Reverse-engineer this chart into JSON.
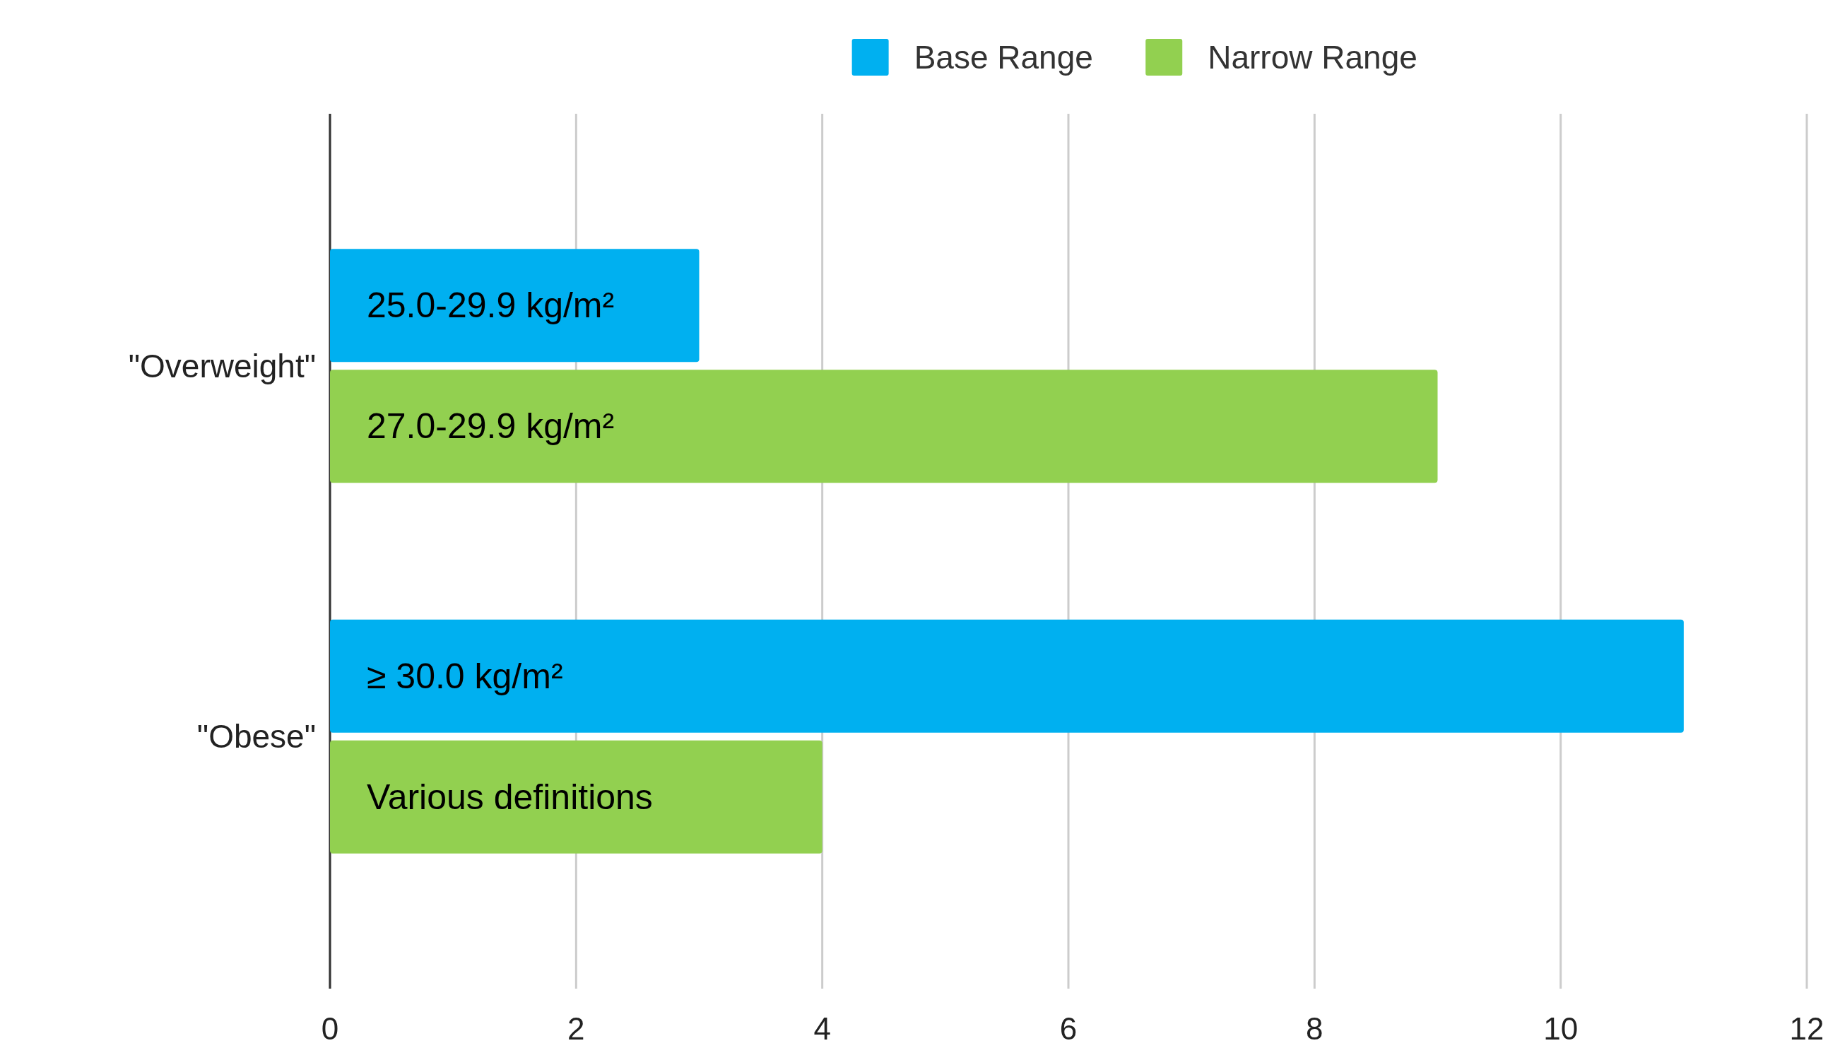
{
  "chart_data": {
    "type": "bar",
    "orientation": "horizontal",
    "categories": [
      "\"Overweight\"",
      "\"Obese\""
    ],
    "series": [
      {
        "name": "Base Range",
        "color": "#00b0f0",
        "values": [
          3,
          11
        ],
        "value_labels": [
          "25.0-29.9 kg/m²",
          "≥ 30.0 kg/m²"
        ]
      },
      {
        "name": "Narrow Range",
        "color": "#92d050",
        "values": [
          9,
          4
        ],
        "value_labels": [
          "27.0-29.9 kg/m²",
          "Various definitions"
        ]
      }
    ],
    "xlim": [
      0,
      12
    ],
    "xticks": [
      0,
      2,
      4,
      6,
      8,
      10,
      12
    ],
    "grid": "x",
    "legend": "top"
  }
}
